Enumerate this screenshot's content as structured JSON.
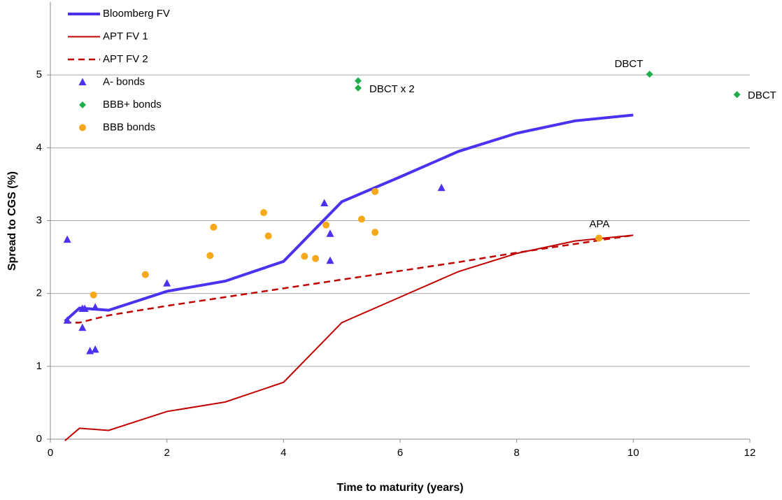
{
  "chart_data": {
    "type": "line",
    "x_label": "Time to maturity (years)",
    "y_label": "Spread to CGS (%)",
    "xlim": [
      0,
      12
    ],
    "xticks": [
      0,
      2,
      4,
      6,
      8,
      10,
      12
    ],
    "ylim": [
      0,
      6
    ],
    "yticks": [
      0,
      1,
      2,
      3,
      4,
      5
    ],
    "grid": true,
    "legend": "top-left",
    "series": [
      {
        "name": "Bloomberg FV",
        "color": "#4b32f0",
        "width": 4,
        "dash": false,
        "x": [
          0.25,
          0.5,
          1,
          2,
          3,
          4,
          5,
          6,
          7,
          8,
          9,
          10
        ],
        "values": [
          1.62,
          1.8,
          1.77,
          2.03,
          2.17,
          2.44,
          3.26,
          3.6,
          3.95,
          4.2,
          4.37,
          4.45
        ]
      },
      {
        "name": "APT FV 1",
        "color": "#c00000",
        "width": 2,
        "dash": false,
        "x": [
          0.25,
          0.5,
          1,
          2,
          3,
          4,
          5,
          6,
          7,
          8,
          9,
          10
        ],
        "values": [
          -0.02,
          0.15,
          0.12,
          0.38,
          0.51,
          0.78,
          1.6,
          1.95,
          2.3,
          2.55,
          2.72,
          2.8
        ]
      },
      {
        "name": "APT FV 2",
        "color": "#c00000",
        "width": 2.5,
        "dash": true,
        "x": [
          0.25,
          0.5,
          1,
          2,
          3,
          4,
          5,
          6,
          7,
          8,
          9,
          10
        ],
        "values": [
          1.6,
          1.6,
          1.7,
          1.83,
          1.95,
          2.07,
          2.19,
          2.31,
          2.43,
          2.56,
          2.68,
          2.8
        ]
      },
      {
        "name": "A- bonds",
        "color": "#4b32f0",
        "marker": "triangle",
        "x": [
          0.29,
          0.29,
          0.55,
          0.59,
          0.55,
          0.68,
          0.77,
          0.77,
          2.0,
          4.7,
          4.8,
          4.8,
          6.71
        ],
        "values": [
          2.74,
          1.63,
          1.79,
          1.79,
          1.53,
          1.21,
          1.23,
          1.81,
          2.14,
          3.24,
          2.82,
          2.45,
          3.45
        ]
      },
      {
        "name": "BBB+ bonds",
        "color": "#1fae4b",
        "marker": "diamond",
        "x": [
          5.28,
          5.28,
          10.28,
          11.78
        ],
        "values": [
          4.92,
          4.82,
          5.01,
          4.73
        ]
      },
      {
        "name": "BBB bonds",
        "color": "#f7a81b",
        "marker": "circle",
        "x": [
          0.74,
          1.63,
          2.74,
          2.8,
          3.66,
          3.74,
          4.36,
          4.55,
          4.73,
          5.34,
          5.57,
          5.57,
          9.41
        ],
        "values": [
          1.98,
          2.26,
          2.52,
          2.91,
          3.11,
          2.79,
          2.51,
          2.48,
          2.94,
          3.02,
          3.4,
          2.84,
          2.76
        ]
      }
    ],
    "annotations": [
      "DBCT x 2",
      "DBCT",
      "DBCT",
      "APA"
    ]
  }
}
